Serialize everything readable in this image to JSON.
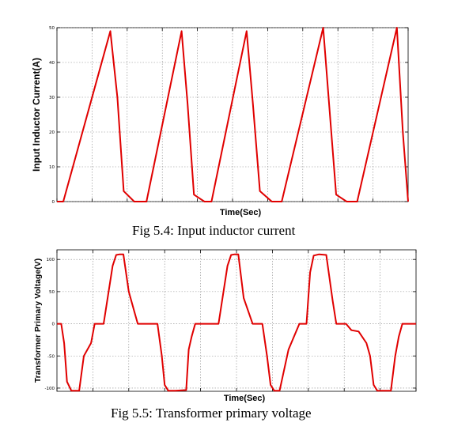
{
  "chart_data": [
    {
      "type": "line",
      "caption": "Fig 5.4: Input inductor current",
      "xlabel": "Time(Sec)",
      "ylabel": "Input Inductor Current(A)",
      "ylim": [
        0,
        50
      ],
      "yticks": [
        0,
        10,
        20,
        30,
        40,
        50
      ],
      "xlim": [
        0,
        10
      ],
      "grid": true,
      "color": "#e00000",
      "series": [
        {
          "x": [
            0,
            0.18,
            1.52,
            1.72,
            1.9,
            2.2,
            2.4,
            2.55,
            3.55,
            3.72,
            3.9,
            4.2,
            4.4,
            5.4,
            5.58,
            5.78,
            6.12,
            6.4,
            7.58,
            7.75,
            7.95,
            8.25,
            8.55,
            9.68,
            9.85,
            10.0
          ],
          "y": [
            0,
            0,
            49,
            30,
            3,
            0,
            0,
            0,
            49,
            28,
            2,
            0,
            0,
            49,
            28,
            3,
            0,
            0,
            50,
            28,
            2,
            0,
            0,
            50,
            20,
            0
          ]
        }
      ]
    },
    {
      "type": "line",
      "caption": "Fig 5.5: Transformer primary voltage",
      "xlabel": "Time(Sec)",
      "ylabel": "Transformer Primary Voltage(V)",
      "ylim": [
        -105,
        115
      ],
      "yticks": [
        -100,
        -50,
        0,
        50,
        100
      ],
      "xlim": [
        0,
        10
      ],
      "grid": true,
      "color": "#e00000",
      "series": [
        {
          "x": [
            0,
            0.12,
            0.2,
            0.28,
            0.4,
            0.5,
            0.62,
            0.75,
            0.95,
            1.05,
            1.15,
            1.3,
            1.55,
            1.65,
            1.75,
            1.85,
            2.0,
            2.15,
            2.25,
            2.45,
            2.8,
            2.92,
            3.0,
            3.1,
            3.3,
            3.6,
            3.67,
            3.75,
            3.85,
            3.95,
            4.05,
            4.2,
            4.5,
            4.75,
            4.85,
            4.95,
            5.05,
            5.2,
            5.45,
            5.6,
            5.72,
            5.85,
            5.95,
            6.05,
            6.2,
            6.45,
            6.75,
            6.85,
            6.95,
            7.05,
            7.15,
            7.3,
            7.5,
            7.68,
            7.78,
            7.88,
            7.98,
            8.05,
            8.2,
            8.4,
            8.62,
            8.72,
            8.82,
            8.92,
            9.02,
            9.3,
            9.42,
            9.52,
            9.62,
            9.72,
            9.82,
            9.95,
            10.0
          ],
          "y": [
            0,
            0,
            -30,
            -90,
            -104,
            -104,
            -104,
            -50,
            -30,
            0,
            0,
            0,
            90,
            107,
            108,
            108,
            50,
            20,
            0,
            0,
            0,
            -50,
            -95,
            -104,
            -104,
            -103,
            -40,
            -20,
            0,
            0,
            0,
            0,
            0,
            90,
            107,
            108,
            108,
            40,
            0,
            0,
            0,
            -50,
            -95,
            -104,
            -104,
            -40,
            0,
            0,
            0,
            80,
            106,
            108,
            107,
            35,
            0,
            0,
            0,
            0,
            -10,
            -12,
            -30,
            -50,
            -95,
            -104,
            -104,
            -104,
            -50,
            -20,
            0,
            0,
            0,
            0,
            0
          ]
        }
      ]
    }
  ]
}
